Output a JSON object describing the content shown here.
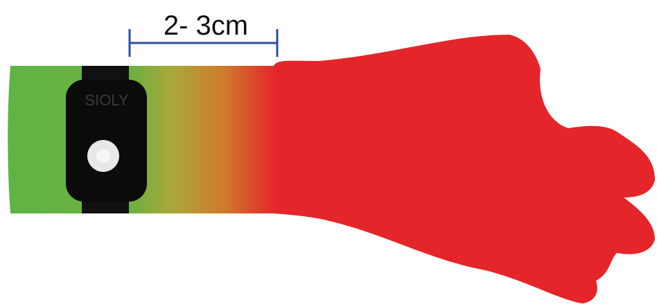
{
  "measurement": {
    "label": "2- 3cm"
  },
  "device": {
    "brand": "SIOLY"
  }
}
